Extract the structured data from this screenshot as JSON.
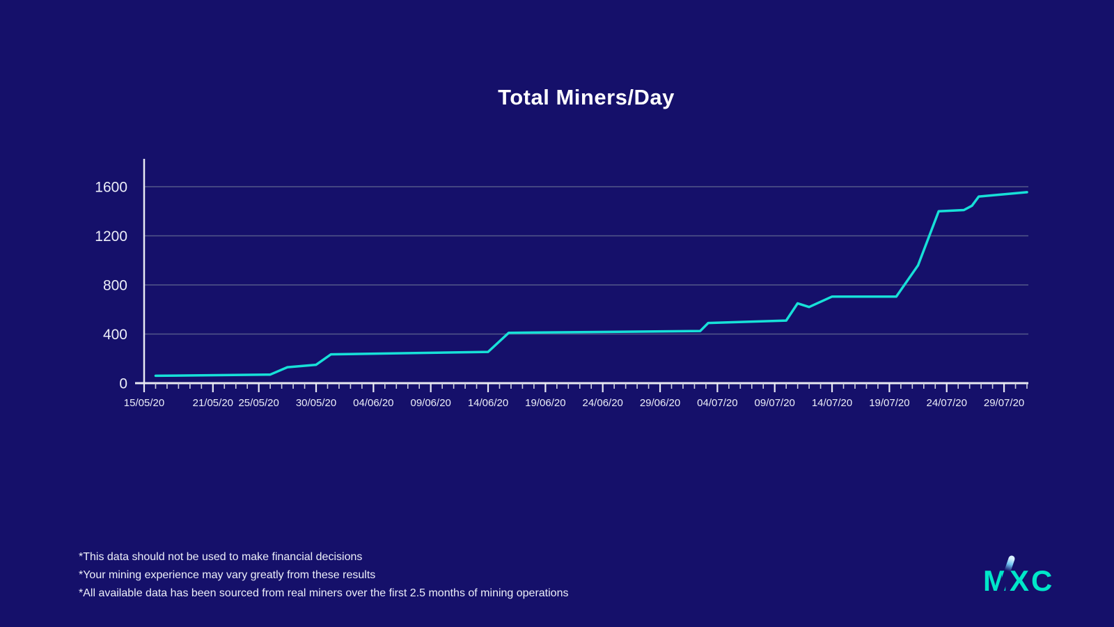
{
  "title": "Total Miners/Day",
  "footnotes": [
    "*This data should not be used to make financial decisions",
    "*Your mining experience may vary greatly from these results",
    "*All available data has been sourced from real miners over the first 2.5 months of mining operations"
  ],
  "logo": {
    "text": "MXC",
    "color": "#00e7c9"
  },
  "colors": {
    "background": "#15106a",
    "line": "#17e0d8",
    "grid": "#54588a",
    "axis": "#e8e9f2",
    "tick": "#cdcfde",
    "label": "#eceef8",
    "title": "#ffffff"
  },
  "chart_data": {
    "type": "line",
    "title": "Total Miners/Day",
    "xlabel": "",
    "ylabel": "",
    "ylim": [
      0,
      1828
    ],
    "yticks": [
      0,
      400,
      800,
      1200,
      1600
    ],
    "grid": "horizontal-only",
    "legend": "none",
    "x_total_days": 77,
    "x_minor_tick_every_days": 1,
    "xticks": [
      {
        "label": "15/05/20",
        "day": 0
      },
      {
        "label": "21/05/20",
        "day": 6
      },
      {
        "label": "25/05/20",
        "day": 10
      },
      {
        "label": "30/05/20",
        "day": 15
      },
      {
        "label": "04/06/20",
        "day": 20
      },
      {
        "label": "09/06/20",
        "day": 25
      },
      {
        "label": "14/06/20",
        "day": 30
      },
      {
        "label": "19/06/20",
        "day": 35
      },
      {
        "label": "24/06/20",
        "day": 40
      },
      {
        "label": "29/06/20",
        "day": 45
      },
      {
        "label": "04/07/20",
        "day": 50
      },
      {
        "label": "09/07/20",
        "day": 55
      },
      {
        "label": "14/07/20",
        "day": 60
      },
      {
        "label": "19/07/20",
        "day": 65
      },
      {
        "label": "24/07/20",
        "day": 70
      },
      {
        "label": "29/07/20",
        "day": 75
      }
    ],
    "series": [
      {
        "name": "Total miners per day",
        "color": "#17e0d8",
        "points": [
          {
            "day": 1,
            "date": "16/05/20",
            "value": 60
          },
          {
            "day": 11,
            "date": "26/05/20",
            "value": 70
          },
          {
            "day": 12.5,
            "date": "27/05/20",
            "value": 130
          },
          {
            "day": 15,
            "date": "30/05/20",
            "value": 150
          },
          {
            "day": 16.3,
            "date": "31/05/20",
            "value": 235
          },
          {
            "day": 30,
            "date": "14/06/20",
            "value": 255
          },
          {
            "day": 31.8,
            "date": "16/06/20",
            "value": 410
          },
          {
            "day": 48.5,
            "date": "02/07/20",
            "value": 425
          },
          {
            "day": 49.2,
            "date": "03/07/20",
            "value": 490
          },
          {
            "day": 56,
            "date": "10/07/20",
            "value": 510
          },
          {
            "day": 57,
            "date": "11/07/20",
            "value": 650
          },
          {
            "day": 58,
            "date": "12/07/20",
            "value": 620
          },
          {
            "day": 60,
            "date": "14/07/20",
            "value": 705
          },
          {
            "day": 65.6,
            "date": "19/07/20",
            "value": 705
          },
          {
            "day": 67.5,
            "date": "21/07/20",
            "value": 960
          },
          {
            "day": 69.3,
            "date": "23/07/20",
            "value": 1400
          },
          {
            "day": 71.5,
            "date": "25/07/20",
            "value": 1410
          },
          {
            "day": 72.2,
            "date": "26/07/20",
            "value": 1445
          },
          {
            "day": 72.8,
            "date": "27/07/20",
            "value": 1520
          },
          {
            "day": 77,
            "date": "31/07/20",
            "value": 1555
          }
        ]
      }
    ]
  }
}
